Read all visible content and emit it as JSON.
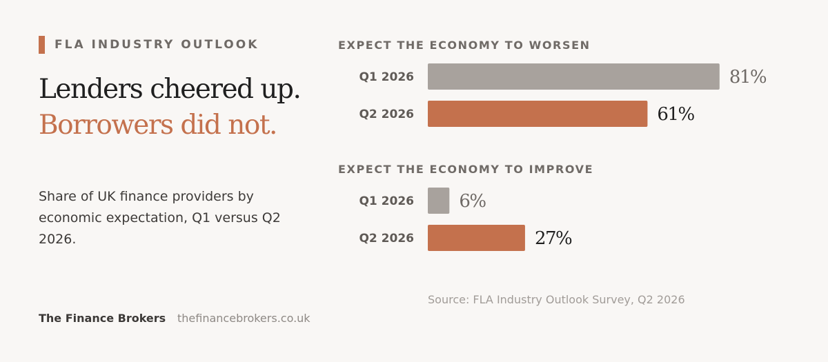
{
  "kicker": "FLA INDUSTRY OUTLOOK",
  "headline": {
    "line1": "Lenders cheered up.",
    "line2": "Borrowers did not."
  },
  "description": "Share of UK finance providers by economic expectation, Q1 versus Q2 2026.",
  "brand": {
    "name": "The Finance Brokers",
    "url": "thefinancebrokers.co.uk"
  },
  "source": "Source: FLA Industry Outlook Survey, Q2 2026",
  "colors": {
    "accent": "#c4714d",
    "q1": "#a8a29d",
    "q2": "#c4714d",
    "q1_label": "#6f6a66",
    "q2_label": "#1f1f1f"
  },
  "chart_data": {
    "type": "bar",
    "orientation": "horizontal",
    "unit": "%",
    "groups": [
      {
        "title": "EXPECT THE ECONOMY TO WORSEN",
        "categories": [
          "Q1 2026",
          "Q2 2026"
        ],
        "values": [
          81,
          61
        ],
        "value_labels": [
          "81%",
          "61%"
        ]
      },
      {
        "title": "EXPECT THE ECONOMY TO IMPROVE",
        "categories": [
          "Q1 2026",
          "Q2 2026"
        ],
        "values": [
          6,
          27
        ],
        "value_labels": [
          "6%",
          "27%"
        ]
      }
    ]
  }
}
